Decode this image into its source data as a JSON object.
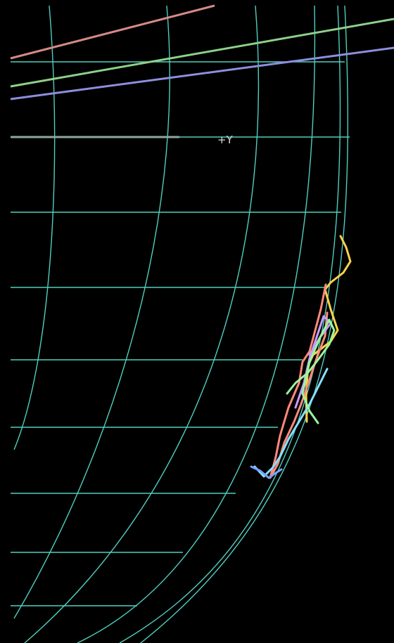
{
  "viewport": {
    "axis_label": "+Y",
    "background_color": "#000000",
    "grid_color": "#4fcfc0",
    "reference_line_colors": [
      "#d58a86",
      "#8ed089",
      "#8d8fdd",
      "#8fa7a0"
    ],
    "trace_colors": [
      "#ffd24a",
      "#ff8a7a",
      "#88e0ff",
      "#c79cff",
      "#9cf59a",
      "#7aa0ff"
    ]
  }
}
